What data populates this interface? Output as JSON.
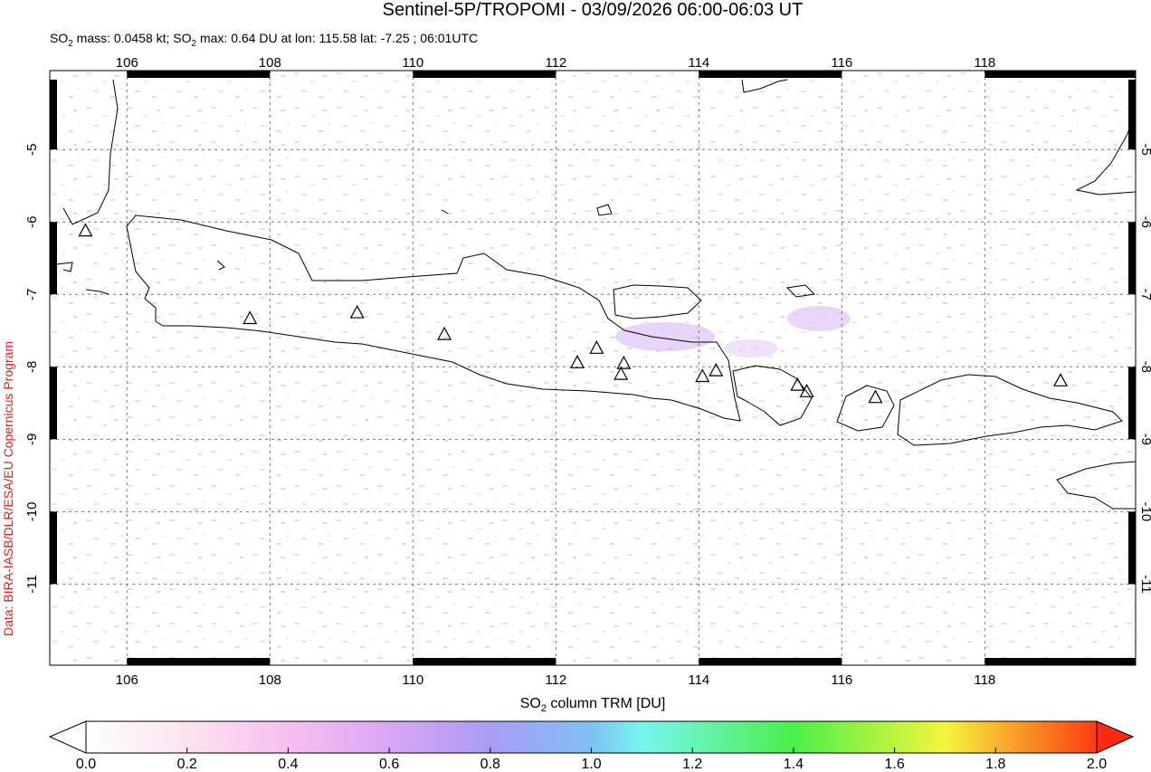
{
  "chart_data": {
    "type": "map",
    "title": "Sentinel-5P/TROPOMI - 03/09/2026 06:00-06:03 UT",
    "subtitle_parts": [
      "SO",
      "2",
      " mass: 0.0458 kt; SO",
      "2",
      " max: 0.64 DU at lon: 115.58 lat: -7.25 ; 06:01UTC"
    ],
    "credit": "Data: BIRA-IASB/DLR/ESA/EU Copernicus Program",
    "xlim": [
      104.92,
      120.11
    ],
    "xticks": [
      106,
      108,
      110,
      112,
      114,
      116,
      118
    ],
    "ylim": [
      -12.12,
      -3.91
    ],
    "yticks": [
      -5,
      -6,
      -7,
      -8,
      -9,
      -10,
      -11
    ],
    "grid": true,
    "volcanoes": {
      "lon": [
        105.42,
        107.72,
        109.22,
        110.44,
        112.3,
        112.57,
        112.95,
        112.91,
        114.05,
        114.24,
        115.38,
        115.51,
        116.47,
        119.06
      ],
      "lat": [
        -6.13,
        -7.34,
        -7.26,
        -7.56,
        -7.95,
        -7.75,
        -7.96,
        -8.11,
        -8.14,
        -8.06,
        -8.26,
        -8.35,
        -8.43,
        -8.2
      ]
    },
    "colorbar": {
      "label_parts": [
        "SO",
        "2",
        " column TRM [DU]"
      ],
      "lim": [
        0,
        2
      ],
      "ticks": [
        {
          "value": 0,
          "label": "0.0"
        },
        {
          "value": 0.2,
          "label": "0.2"
        },
        {
          "value": 0.4,
          "label": "0.4"
        },
        {
          "value": 0.6,
          "label": "0.6"
        },
        {
          "value": 0.8,
          "label": "0.8"
        },
        {
          "value": 1,
          "label": "1.0"
        },
        {
          "value": 1.2,
          "label": "1.2"
        },
        {
          "value": 1.4,
          "label": "1.4"
        },
        {
          "value": 1.6,
          "label": "1.6"
        },
        {
          "value": 1.8,
          "label": "1.8"
        },
        {
          "value": 2,
          "label": "2.0"
        }
      ]
    }
  }
}
